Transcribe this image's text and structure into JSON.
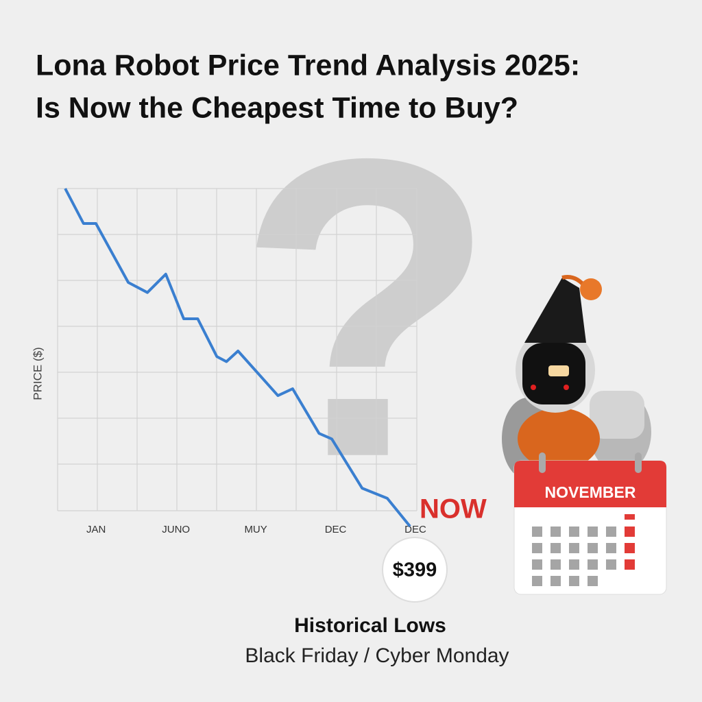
{
  "chart_data": {
    "type": "line",
    "title": "Lona Robot Price Trend Analysis 2025:",
    "subtitle": "Is Now the Cheapest Time to Buy?",
    "ylabel": "PRICE ($)",
    "xlim": [
      0,
      9
    ],
    "ylim": [
      -0.4,
      7
    ],
    "xticks": [
      {
        "value": 1,
        "label": "JAN"
      },
      {
        "value": 3,
        "label": "JUNO"
      },
      {
        "value": 5,
        "label": "MUY"
      },
      {
        "value": 7,
        "label": "DEC"
      },
      {
        "value": 9,
        "label": "DEC"
      }
    ],
    "x": [
      0.19,
      0.65,
      0.96,
      1.77,
      2.25,
      2.71,
      3.16,
      3.51,
      3.99,
      4.23,
      4.52,
      5.52,
      5.89,
      6.55,
      6.87,
      7.63,
      8.26,
      8.83
    ],
    "values": [
      7.0,
      6.24,
      6.24,
      4.96,
      4.74,
      5.14,
      4.17,
      4.17,
      3.35,
      3.24,
      3.47,
      2.5,
      2.65,
      1.68,
      1.56,
      0.49,
      0.27,
      -0.34
    ],
    "color": "#3a7fd0",
    "watermark": "?",
    "now_label": "NOW",
    "price_label": "$399",
    "headline": "Historical Lows",
    "subline": "Black Friday / Cyber Monday",
    "calendar_month": "NOVEMBER"
  }
}
